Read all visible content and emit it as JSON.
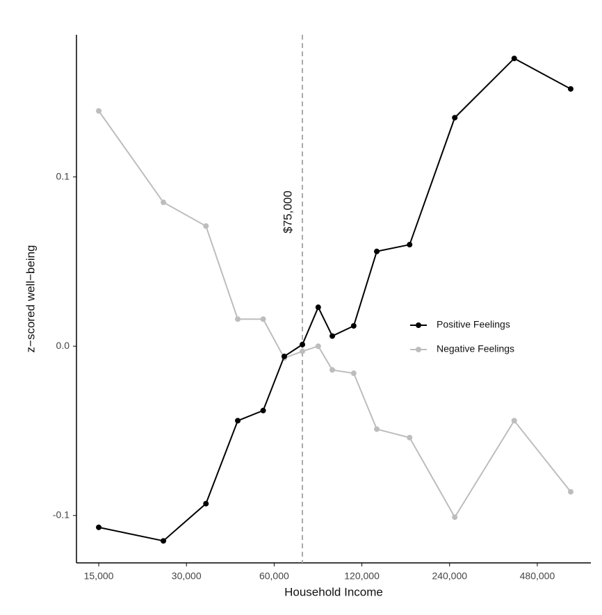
{
  "chart_data": {
    "type": "line",
    "x_label": "Household Income",
    "y_label": "z−scored well−being",
    "x": [
      15000,
      25000,
      35000,
      45000,
      55000,
      65000,
      75000,
      85000,
      95000,
      112500,
      135000,
      175000,
      250000,
      400000,
      625000
    ],
    "series": [
      {
        "name": "Positive Feelings",
        "color": "#000000",
        "values": [
          -0.107,
          -0.115,
          -0.093,
          -0.044,
          -0.038,
          -0.006,
          0.001,
          0.023,
          0.006,
          0.012,
          0.056,
          0.06,
          0.135,
          0.17,
          0.152
        ]
      },
      {
        "name": "Negative Feelings",
        "color": "#bdbdbd",
        "values": [
          0.139,
          0.085,
          0.071,
          0.016,
          0.016,
          -0.007,
          -0.003,
          0.0,
          -0.014,
          -0.016,
          -0.049,
          -0.054,
          -0.101,
          -0.044,
          -0.086
        ]
      }
    ],
    "xscale": "log",
    "xlim": [
      12580,
      733000
    ],
    "ylim": [
      -0.128,
      0.184
    ],
    "xticks": [
      {
        "value": 15000,
        "label": "15,000"
      },
      {
        "value": 30000,
        "label": "30,000"
      },
      {
        "value": 60000,
        "label": "60,000"
      },
      {
        "value": 120000,
        "label": "120,000"
      },
      {
        "value": 240000,
        "label": "240,000"
      },
      {
        "value": 480000,
        "label": "480,000"
      }
    ],
    "yticks": [
      0.1,
      {
        "value": 0,
        "label": "0.0"
      },
      -0.1
    ],
    "vline": {
      "x": 75000,
      "label": "$75,000",
      "color": "#aaaaaa"
    },
    "legend": "right"
  }
}
